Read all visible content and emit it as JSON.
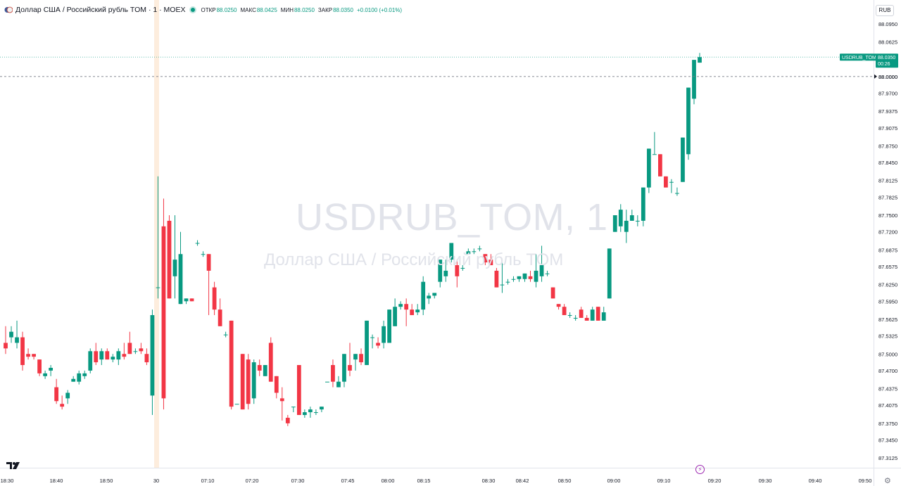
{
  "legend": {
    "title": "Доллар США / Российский рубль TOM · 1 · MOEX",
    "open_label": "ОТКР",
    "open_value": "88.0250",
    "high_label": "МАКС",
    "high_value": "88.0425",
    "low_label": "МИН",
    "low_value": "88.0250",
    "close_label": "ЗАКР",
    "close_value": "88.0350",
    "change": "+0.0100 (+0.01%)",
    "status_icon": "market-open-dot"
  },
  "currency_button": "RUB",
  "watermark": {
    "symbol": "USDRUB_TOM, 1",
    "description": "Доллар США / Российский рубль TOM"
  },
  "price_tag": {
    "symbol": "USDRUB_TOM",
    "price": "88.0350",
    "countdown": "00:26",
    "color": "#089981"
  },
  "crosshair_label": "88.0000",
  "colors": {
    "up": "#089981",
    "down": "#f23645",
    "session_highlight": "#fde9d4"
  },
  "icons": {
    "logo": "tradingview-logo-icon",
    "replay": "lightning-icon",
    "settings": "gear-icon"
  },
  "chart_data": {
    "type": "candlestick",
    "ylim": [
      87.2975,
      88.1075
    ],
    "y_ticks": [
      "88.0950",
      "88.0625",
      "88.0350",
      "88.0000",
      "87.9700",
      "87.9375",
      "87.9075",
      "87.8750",
      "87.8450",
      "87.8125",
      "87.7825",
      "87.7500",
      "87.7200",
      "87.6875",
      "87.6575",
      "87.6250",
      "87.5950",
      "87.5625",
      "87.5325",
      "87.5000",
      "87.4700",
      "87.4375",
      "87.4075",
      "87.3750",
      "87.3450",
      "87.3125"
    ],
    "x_ticks": [
      "18:30",
      "18:40",
      "18:50",
      "30",
      "07:10",
      "07:20",
      "07:30",
      "07:45",
      "08:00",
      "08:15",
      "08:30",
      "08:42",
      "08:50",
      "09:00",
      "09:10",
      "09:20",
      "09:30",
      "09:40",
      "09:50"
    ],
    "candles": [
      [
        87.52,
        87.55,
        87.5,
        87.51
      ],
      [
        87.53,
        87.55,
        87.52,
        87.54
      ],
      [
        87.52,
        87.56,
        87.51,
        87.53
      ],
      [
        87.53,
        87.54,
        87.47,
        87.48
      ],
      [
        87.5,
        87.51,
        87.49,
        87.495
      ],
      [
        87.5,
        87.5,
        87.49,
        87.495
      ],
      [
        87.49,
        87.49,
        87.46,
        87.465
      ],
      [
        87.46,
        87.47,
        87.455,
        87.465
      ],
      [
        87.47,
        87.48,
        87.46,
        87.475
      ],
      [
        87.44,
        87.455,
        87.41,
        87.415
      ],
      [
        87.41,
        87.425,
        87.4,
        87.405
      ],
      [
        87.42,
        87.435,
        87.41,
        87.43
      ],
      [
        87.45,
        87.46,
        87.45,
        87.455
      ],
      [
        87.45,
        87.47,
        87.445,
        87.465
      ],
      [
        87.46,
        87.47,
        87.455,
        87.465
      ],
      [
        87.47,
        87.51,
        87.465,
        87.505
      ],
      [
        87.505,
        87.52,
        87.48,
        87.485
      ],
      [
        87.49,
        87.51,
        87.48,
        87.505
      ],
      [
        87.505,
        87.51,
        87.49,
        87.49
      ],
      [
        87.49,
        87.5,
        87.485,
        87.495
      ],
      [
        87.49,
        87.51,
        87.48,
        87.505
      ],
      [
        87.5,
        87.52,
        87.49,
        87.495
      ],
      [
        87.52,
        87.54,
        87.5,
        87.5
      ],
      [
        87.505,
        87.51,
        87.5,
        87.505
      ],
      [
        87.51,
        87.52,
        87.5,
        87.505
      ],
      [
        87.5,
        87.51,
        87.48,
        87.485
      ],
      [
        87.425,
        87.58,
        87.39,
        87.57
      ],
      [
        87.62,
        87.82,
        87.6,
        87.62
      ],
      [
        87.73,
        87.78,
        87.4,
        87.42
      ],
      [
        87.74,
        87.75,
        87.6,
        87.6
      ],
      [
        87.64,
        87.75,
        87.6,
        87.67
      ],
      [
        87.59,
        87.72,
        87.59,
        87.68
      ],
      [
        87.595,
        87.6,
        87.59,
        87.6
      ],
      [
        87.6,
        87.6,
        87.595,
        87.595
      ],
      [
        87.7,
        87.705,
        87.695,
        87.7
      ],
      [
        87.68,
        87.685,
        87.675,
        87.68
      ],
      [
        87.68,
        87.68,
        87.57,
        87.65
      ],
      [
        87.62,
        87.63,
        87.57,
        87.58
      ],
      [
        87.58,
        87.6,
        87.55,
        87.55
      ],
      [
        87.535,
        87.54,
        87.53,
        87.535
      ],
      [
        87.56,
        87.56,
        87.4,
        87.405
      ],
      [
        87.41,
        87.41,
        87.41,
        87.41
      ],
      [
        87.5,
        87.5,
        87.4,
        87.4
      ],
      [
        87.49,
        87.5,
        87.4,
        87.41
      ],
      [
        87.42,
        87.49,
        87.41,
        87.485
      ],
      [
        87.48,
        87.49,
        87.46,
        87.47
      ],
      [
        87.46,
        87.48,
        87.46,
        87.48
      ],
      [
        87.52,
        87.53,
        87.45,
        87.45
      ],
      [
        87.46,
        87.46,
        87.42,
        87.43
      ],
      [
        87.42,
        87.44,
        87.38,
        87.415
      ],
      [
        87.385,
        87.39,
        87.37,
        87.375
      ],
      [
        87.405,
        87.405,
        87.395,
        87.405
      ],
      [
        87.48,
        87.48,
        87.39,
        87.39
      ],
      [
        87.39,
        87.4,
        87.385,
        87.395
      ],
      [
        87.395,
        87.405,
        87.385,
        87.4
      ],
      [
        87.395,
        87.4,
        87.39,
        87.395
      ],
      [
        87.4,
        87.405,
        87.395,
        87.405
      ],
      [
        87.45,
        87.45,
        87.45,
        87.45
      ],
      [
        87.48,
        87.49,
        87.44,
        87.45
      ],
      [
        87.44,
        87.46,
        87.44,
        87.45
      ],
      [
        87.45,
        87.5,
        87.44,
        87.5
      ],
      [
        87.48,
        87.52,
        87.46,
        87.47
      ],
      [
        87.49,
        87.5,
        87.47,
        87.5
      ],
      [
        87.5,
        87.51,
        87.48,
        87.485
      ],
      [
        87.48,
        87.56,
        87.48,
        87.56
      ],
      [
        87.53,
        87.535,
        87.51,
        87.53
      ],
      [
        87.52,
        87.53,
        87.51,
        87.515
      ],
      [
        87.52,
        87.56,
        87.51,
        87.55
      ],
      [
        87.52,
        87.58,
        87.52,
        87.58
      ],
      [
        87.55,
        87.6,
        87.55,
        87.585
      ],
      [
        87.585,
        87.595,
        87.58,
        87.59
      ],
      [
        87.59,
        87.6,
        87.55,
        87.58
      ],
      [
        87.58,
        87.59,
        87.57,
        87.57
      ],
      [
        87.575,
        87.59,
        87.57,
        87.58
      ],
      [
        87.58,
        87.64,
        87.57,
        87.63
      ],
      [
        87.6,
        87.61,
        87.59,
        87.605
      ],
      [
        87.605,
        87.61,
        87.6,
        87.61
      ],
      [
        87.63,
        87.67,
        87.62,
        87.67
      ],
      [
        87.64,
        87.67,
        87.63,
        87.65
      ],
      [
        87.67,
        87.7,
        87.665,
        87.7
      ],
      [
        87.66,
        87.67,
        87.62,
        87.64
      ],
      [
        87.655,
        87.66,
        87.65,
        87.655
      ],
      [
        87.68,
        87.69,
        87.68,
        87.685
      ],
      [
        87.685,
        87.69,
        87.68,
        87.685
      ],
      [
        87.69,
        87.695,
        87.685,
        87.69
      ],
      [
        87.68,
        87.68,
        87.66,
        87.665
      ],
      [
        87.67,
        87.68,
        87.66,
        87.66
      ],
      [
        87.65,
        87.655,
        87.62,
        87.62
      ],
      [
        87.625,
        87.67,
        87.61,
        87.625
      ],
      [
        87.63,
        87.635,
        87.625,
        87.63
      ],
      [
        87.635,
        87.64,
        87.63,
        87.635
      ],
      [
        87.635,
        87.64,
        87.63,
        87.64
      ],
      [
        87.635,
        87.645,
        87.63,
        87.645
      ],
      [
        87.64,
        87.65,
        87.63,
        87.635
      ],
      [
        87.63,
        87.68,
        87.62,
        87.65
      ],
      [
        87.64,
        87.695,
        87.63,
        87.66
      ],
      [
        87.645,
        87.65,
        87.64,
        87.645
      ],
      [
        87.62,
        87.62,
        87.6,
        87.6
      ],
      [
        87.59,
        87.59,
        87.58,
        87.585
      ],
      [
        87.585,
        87.59,
        87.57,
        87.57
      ],
      [
        87.57,
        87.575,
        87.565,
        87.57
      ],
      [
        87.565,
        87.57,
        87.56,
        87.565
      ],
      [
        87.58,
        87.585,
        87.565,
        87.565
      ],
      [
        87.565,
        87.57,
        87.56,
        87.56
      ],
      [
        87.56,
        87.585,
        87.56,
        87.58
      ],
      [
        87.585,
        87.585,
        87.56,
        87.56
      ],
      [
        87.56,
        87.585,
        87.56,
        87.575
      ],
      [
        87.6,
        87.69,
        87.6,
        87.69
      ],
      [
        87.72,
        87.75,
        87.72,
        87.75
      ],
      [
        87.73,
        87.77,
        87.72,
        87.76
      ],
      [
        87.72,
        87.76,
        87.7,
        87.74
      ],
      [
        87.74,
        87.76,
        87.74,
        87.75
      ],
      [
        87.74,
        87.75,
        87.73,
        87.74
      ],
      [
        87.74,
        87.8,
        87.73,
        87.8
      ],
      [
        87.8,
        87.87,
        87.79,
        87.87
      ],
      [
        87.86,
        87.9,
        87.86,
        87.86
      ],
      [
        87.86,
        87.86,
        87.82,
        87.82
      ],
      [
        87.82,
        87.82,
        87.8,
        87.8
      ],
      [
        87.81,
        87.815,
        87.79,
        87.81
      ],
      [
        87.79,
        87.8,
        87.785,
        87.79
      ],
      [
        87.81,
        87.89,
        87.81,
        87.89
      ],
      [
        87.86,
        87.98,
        87.85,
        87.98
      ],
      [
        87.96,
        88.03,
        87.95,
        88.03
      ],
      [
        88.025,
        88.0425,
        88.025,
        88.035
      ]
    ]
  }
}
